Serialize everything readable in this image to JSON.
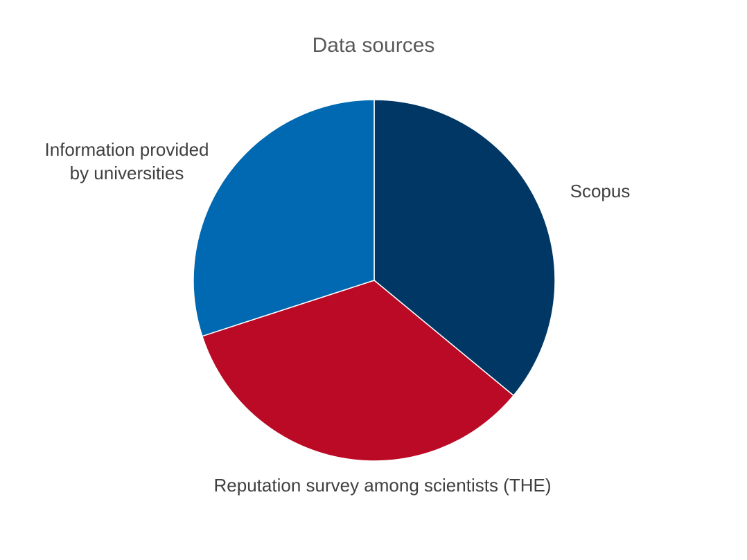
{
  "chart_data": {
    "type": "pie",
    "title": "Data sources",
    "colors": [
      "#003764",
      "#BA0A26",
      "#0169B1"
    ],
    "slices": [
      {
        "label": "Scopus",
        "label_lines": [
          "Scopus"
        ],
        "value": 36
      },
      {
        "label": "Reputation survey among scientists (THE)",
        "label_lines": [
          "Reputation survey among scientists (THE)"
        ],
        "value": 34
      },
      {
        "label": "Information provided by universities",
        "label_lines": [
          "Information provided",
          "by universities"
        ],
        "value": 30
      }
    ],
    "start": "12 o'clock",
    "direction": "clockwise",
    "legend": "none"
  }
}
